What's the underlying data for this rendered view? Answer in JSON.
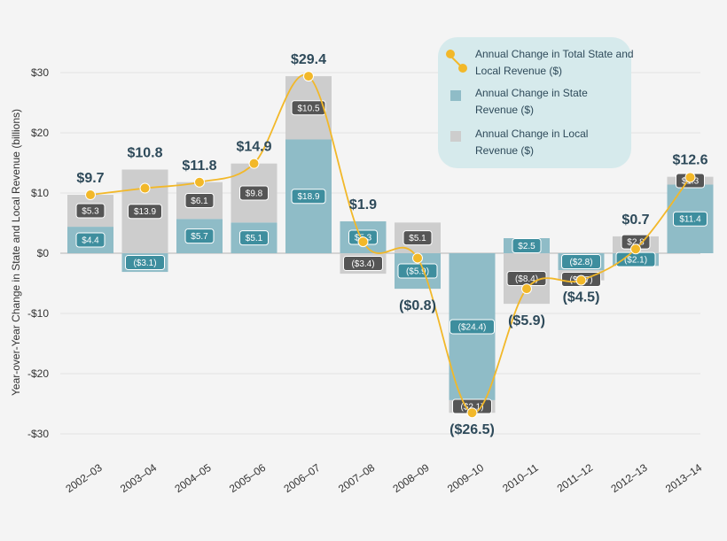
{
  "chart_data": {
    "type": "bar",
    "title": "",
    "ylabel": "Year-over-Year Change in State and Local Revenue (billions)",
    "xlabel": "",
    "ylim": [
      -30,
      30
    ],
    "yticks": [
      30,
      20,
      10,
      0,
      -10,
      -20,
      -30
    ],
    "ytick_labels": [
      "$30",
      "$20",
      "$10",
      "$0",
      "-$10",
      "-$20",
      "-$30"
    ],
    "categories": [
      "2002–03",
      "2003–04",
      "2004–05",
      "2005–06",
      "2006–07",
      "2007–08",
      "2008–09",
      "2009–10",
      "2010–11",
      "2011–12",
      "2012–13",
      "2013–14"
    ],
    "series": [
      {
        "name": "Annual Change in State Revenue ($)",
        "color": "#8fbcc7",
        "label_color": "#3e8e9e",
        "values": [
          4.4,
          -3.1,
          5.7,
          5.1,
          18.9,
          5.3,
          -5.9,
          -24.4,
          2.5,
          -2.8,
          -2.1,
          11.4
        ],
        "labels": [
          "$4.4",
          "($3.1)",
          "$5.7",
          "$5.1",
          "$18.9",
          "$5.3",
          "($5.9)",
          "($24.4)",
          "$2.5",
          "($2.8)",
          "($2.1)",
          "$11.4"
        ]
      },
      {
        "name": "Annual Change in Local Revenue ($)",
        "color": "#cdcdcd",
        "label_color": "#555555",
        "values": [
          5.3,
          13.9,
          6.1,
          9.8,
          10.5,
          -3.4,
          5.1,
          -2.1,
          -8.4,
          -1.7,
          2.8,
          1.3
        ],
        "labels": [
          "$5.3",
          "$13.9",
          "$6.1",
          "$9.8",
          "$10.5",
          "($3.4)",
          "$5.1",
          "($2.1)",
          "($8.4)",
          "($1.7)",
          "$2.8",
          "$1.3"
        ]
      },
      {
        "name": "Annual Change in Total State and Local Revenue ($)",
        "color": "#f2b829",
        "values": [
          9.7,
          10.8,
          11.8,
          14.9,
          29.4,
          1.9,
          -0.8,
          -26.5,
          -5.9,
          -4.5,
          0.7,
          12.6
        ],
        "labels": [
          "$9.7",
          "$10.8",
          "$11.8",
          "$14.9",
          "$29.4",
          "$1.9",
          "($0.8)",
          "($26.5)",
          "($5.9)",
          "($4.5)",
          "$0.7",
          "$12.6"
        ]
      }
    ],
    "legend": {
      "placement": "top-right",
      "entries": [
        {
          "line1": "Annual Change in Total State and",
          "line2": "Local Revenue ($)"
        },
        {
          "line1": "Annual Change in State",
          "line2": "Revenue ($)"
        },
        {
          "line1": "Annual Change in Local",
          "line2": "Revenue ($)"
        }
      ]
    }
  }
}
